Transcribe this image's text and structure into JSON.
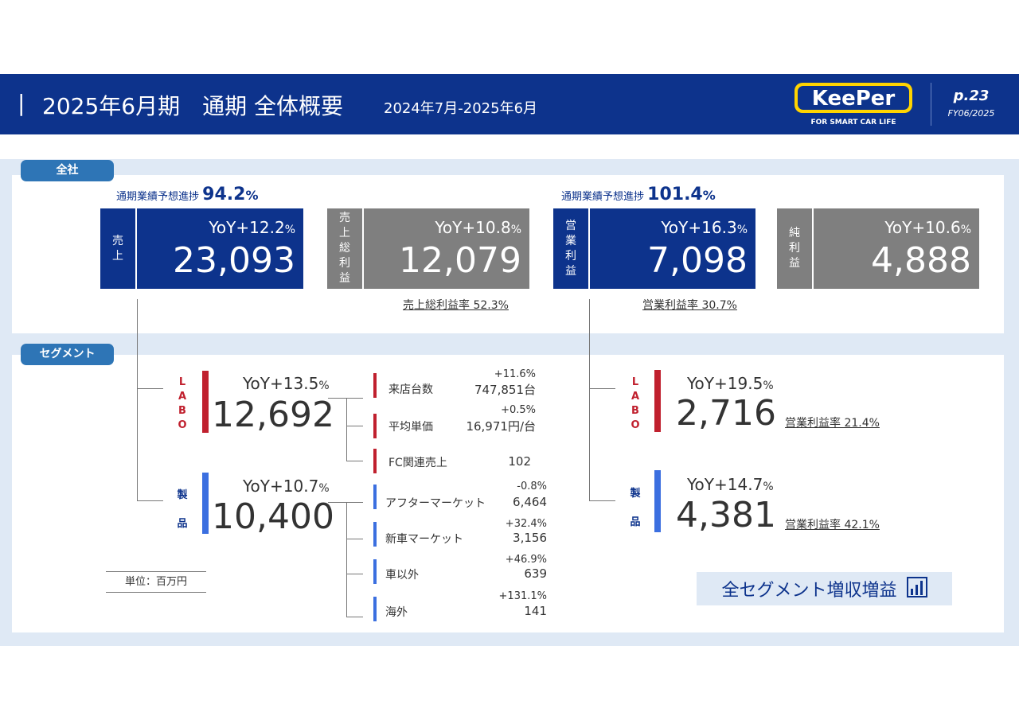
{
  "header": {
    "bar": "|",
    "title": "2025年6月期　通期 全体概要",
    "period": "2024年7月-2025年6月",
    "logo_text": "KeePer",
    "logo_tagline": "FOR SMART CAR LIFE",
    "page": "p.23",
    "fy": "FY06/2025",
    "colors": {
      "navy": "#0d338c",
      "red": "#c0202e",
      "blue": "#3b6fe0",
      "gray": "#7f7f7f"
    }
  },
  "tabs": {
    "all": "全社",
    "segment": "セグメント"
  },
  "progress": {
    "sales": {
      "label": "通期業績予想進捗",
      "value": "94.2",
      "pct": "%"
    },
    "op": {
      "label": "通期業績予想進捗",
      "value": "101.4",
      "pct": "%"
    }
  },
  "kpis": {
    "sales": {
      "label": [
        "売",
        "上"
      ],
      "yoy": "YoY+12.2",
      "pct": "%",
      "value": "23,093"
    },
    "gross": {
      "label": [
        "売",
        "上",
        "総",
        "利",
        "益"
      ],
      "yoy": "YoY+10.8",
      "pct": "%",
      "value": "12,079"
    },
    "op": {
      "label": [
        "営",
        "業",
        "利",
        "益"
      ],
      "yoy": "YoY+16.3",
      "pct": "%",
      "value": "7,098"
    },
    "net": {
      "label": [
        "純",
        "利",
        "益"
      ],
      "yoy": "YoY+10.6",
      "pct": "%",
      "value": "4,888"
    }
  },
  "ratios": {
    "gross": "売上総利益率 52.3%",
    "op": "営業利益率 30.7%"
  },
  "sales_segments": {
    "labo": {
      "label": [
        "L",
        "A",
        "B",
        "O"
      ],
      "yoy": "YoY+13.5",
      "pct": "%",
      "value": "12,692",
      "items": [
        {
          "label": "来店台数",
          "yoy": "+11.6%",
          "value": "747,851台"
        },
        {
          "label": "平均単価",
          "yoy": "+0.5%",
          "value": "16,971円/台"
        },
        {
          "label": "FC関連売上",
          "yoy": "",
          "value": "102"
        }
      ]
    },
    "product": {
      "label": [
        "製",
        "品"
      ],
      "yoy": "YoY+10.7",
      "pct": "%",
      "value": "10,400",
      "items": [
        {
          "label": "アフターマーケット",
          "yoy": "-0.8%",
          "value": "6,464"
        },
        {
          "label": "新車マーケット",
          "yoy": "+32.4%",
          "value": "3,156"
        },
        {
          "label": "車以外",
          "yoy": "+46.9%",
          "value": "639"
        },
        {
          "label": "海外",
          "yoy": "+131.1%",
          "value": "141"
        }
      ]
    }
  },
  "op_segments": {
    "labo": {
      "label": [
        "L",
        "A",
        "B",
        "O"
      ],
      "yoy": "YoY+19.5",
      "pct": "%",
      "value": "2,716",
      "ratio": "営業利益率 21.4%"
    },
    "product": {
      "label": [
        "製",
        "品"
      ],
      "yoy": "YoY+14.7",
      "pct": "%",
      "value": "4,381",
      "ratio": "営業利益率 42.1%"
    }
  },
  "unit": "単位：百万円",
  "banner": {
    "text": "全セグメント増収増益",
    "icon": "bar-chart-icon"
  }
}
